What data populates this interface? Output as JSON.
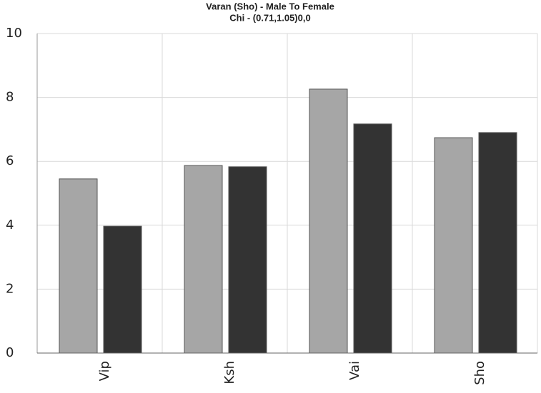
{
  "chart_data": {
    "type": "bar",
    "title": "Varan (Sho) - Male To Female",
    "subtitle": "Chi - (0.71,1.05)0,0",
    "categories": [
      "Vip",
      "Ksh",
      "Vai",
      "Sho"
    ],
    "series": [
      {
        "color": "#a6a6a6",
        "values": [
          5.45,
          5.87,
          8.26,
          6.74
        ]
      },
      {
        "color": "#333333",
        "values": [
          3.97,
          5.83,
          7.17,
          6.9
        ]
      }
    ],
    "ylim": [
      0,
      10
    ],
    "yticks": [
      0,
      2,
      4,
      6,
      8,
      10
    ],
    "grid": true
  }
}
